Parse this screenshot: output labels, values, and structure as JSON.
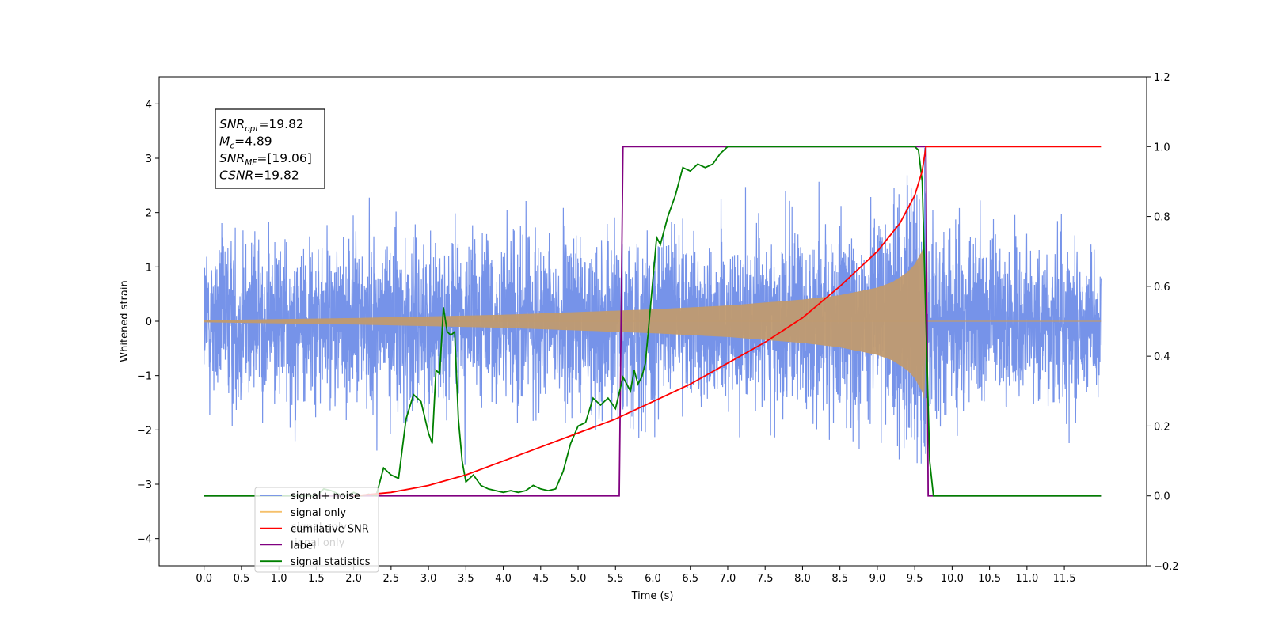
{
  "chart_data": {
    "type": "line",
    "xlabel": "Time (s)",
    "ylabel": "Whitened strain",
    "xlim": [
      -0.6,
      12.6
    ],
    "ylim_left": [
      -4.5,
      4.5
    ],
    "ylim_right": [
      -0.2,
      1.2
    ],
    "x_ticks": [
      "0.0",
      "0.5",
      "1.0",
      "1.5",
      "2.0",
      "2.5",
      "3.0",
      "3.5",
      "4.0",
      "4.5",
      "5.0",
      "5.5",
      "6.0",
      "6.5",
      "7.0",
      "7.5",
      "8.0",
      "8.5",
      "9.0",
      "9.5",
      "10.0",
      "10.5",
      "11.0",
      "11.5"
    ],
    "y_ticks_left": [
      "4",
      "3",
      "2",
      "1",
      "0",
      "−1",
      "−2",
      "−3",
      "−4"
    ],
    "y_ticks_right": [
      "1.2",
      "1.0",
      "0.8",
      "0.6",
      "0.4",
      "0.2",
      "0.0",
      "−0.2"
    ],
    "annotation": {
      "lines": [
        {
          "base": "SNR",
          "sub": "opt",
          "value": "=19.82"
        },
        {
          "base": "M",
          "sub": "c",
          "value": "=4.89"
        },
        {
          "base": "SNR",
          "sub": "MF",
          "value": "=[19.06]"
        },
        {
          "base": "CSNR",
          "sub": "",
          "value": "=19.82"
        }
      ]
    },
    "legend": {
      "placement": "lower-left",
      "entries": [
        {
          "label": "signal+ noise",
          "color": "#6f8de8"
        },
        {
          "label": "signal only",
          "color": "#f5c06b"
        },
        {
          "label": "cumilative SNR",
          "color": "#ff0000"
        },
        {
          "label": "label",
          "color": "#800080"
        },
        {
          "label": "signal statistics",
          "color": "#008000"
        }
      ],
      "hidden_labels": [
        "signal only",
        "ignal only"
      ]
    },
    "series": [
      {
        "name": "signal+ noise",
        "axis": "left",
        "color": "#6f8de8",
        "noise_sigma": 1.05,
        "x_range": [
          0.0,
          12.0
        ]
      },
      {
        "name": "signal only",
        "axis": "left",
        "color": "#c09a70",
        "envelope": {
          "x": [
            0.0,
            2.0,
            4.0,
            6.0,
            7.0,
            8.0,
            8.5,
            9.0,
            9.2,
            9.4,
            9.5,
            9.6,
            9.65,
            9.66
          ],
          "amp": [
            0.02,
            0.06,
            0.12,
            0.22,
            0.29,
            0.4,
            0.48,
            0.62,
            0.72,
            0.9,
            1.05,
            1.3,
            1.55,
            0.0
          ]
        }
      },
      {
        "name": "cumilative SNR",
        "axis": "right",
        "color": "#ff0000",
        "x": [
          2.0,
          2.5,
          3.0,
          3.5,
          4.0,
          4.5,
          5.0,
          5.5,
          6.0,
          6.5,
          7.0,
          7.5,
          8.0,
          8.5,
          9.0,
          9.3,
          9.5,
          9.6,
          9.65,
          9.7,
          12.0
        ],
        "y": [
          0.0,
          0.01,
          0.03,
          0.06,
          0.1,
          0.14,
          0.18,
          0.22,
          0.27,
          0.32,
          0.38,
          0.44,
          0.51,
          0.6,
          0.7,
          0.78,
          0.86,
          0.93,
          1.0,
          1.0,
          1.0
        ]
      },
      {
        "name": "label",
        "axis": "right",
        "color": "#800080",
        "x": [
          0.0,
          5.55,
          5.6,
          9.65,
          9.68,
          12.0
        ],
        "y": [
          0.0,
          0.0,
          1.0,
          1.0,
          0.0,
          0.0
        ]
      },
      {
        "name": "signal statistics",
        "axis": "right",
        "color": "#008000",
        "x": [
          0.0,
          1.5,
          1.6,
          1.7,
          1.8,
          1.9,
          2.0,
          2.1,
          2.2,
          2.3,
          2.4,
          2.5,
          2.6,
          2.7,
          2.8,
          2.9,
          3.0,
          3.05,
          3.1,
          3.15,
          3.2,
          3.25,
          3.3,
          3.35,
          3.4,
          3.45,
          3.5,
          3.6,
          3.7,
          3.8,
          3.9,
          4.0,
          4.1,
          4.2,
          4.3,
          4.4,
          4.5,
          4.6,
          4.7,
          4.8,
          4.9,
          5.0,
          5.1,
          5.2,
          5.3,
          5.4,
          5.5,
          5.6,
          5.65,
          5.7,
          5.75,
          5.8,
          5.85,
          5.9,
          5.95,
          6.0,
          6.05,
          6.1,
          6.2,
          6.3,
          6.4,
          6.5,
          6.6,
          6.7,
          6.8,
          6.9,
          7.0,
          7.1,
          7.3,
          7.5,
          8.0,
          9.0,
          9.5,
          9.55,
          9.6,
          9.65,
          9.7,
          9.75,
          10.0,
          12.0
        ],
        "y": [
          0.0,
          0.0,
          0.02,
          0.015,
          0.005,
          0.0,
          0.01,
          0.0,
          0.005,
          0.0,
          0.08,
          0.06,
          0.05,
          0.22,
          0.29,
          0.27,
          0.18,
          0.15,
          0.36,
          0.35,
          0.54,
          0.47,
          0.46,
          0.47,
          0.22,
          0.1,
          0.04,
          0.06,
          0.03,
          0.02,
          0.015,
          0.01,
          0.015,
          0.01,
          0.015,
          0.03,
          0.02,
          0.015,
          0.02,
          0.07,
          0.15,
          0.2,
          0.21,
          0.28,
          0.26,
          0.28,
          0.25,
          0.34,
          0.32,
          0.3,
          0.36,
          0.32,
          0.34,
          0.38,
          0.5,
          0.62,
          0.74,
          0.72,
          0.8,
          0.86,
          0.94,
          0.93,
          0.95,
          0.94,
          0.95,
          0.98,
          1.0,
          1.0,
          1.0,
          1.0,
          1.0,
          1.0,
          1.0,
          0.99,
          0.9,
          0.5,
          0.1,
          0.0,
          0.0,
          0.0
        ]
      }
    ]
  }
}
